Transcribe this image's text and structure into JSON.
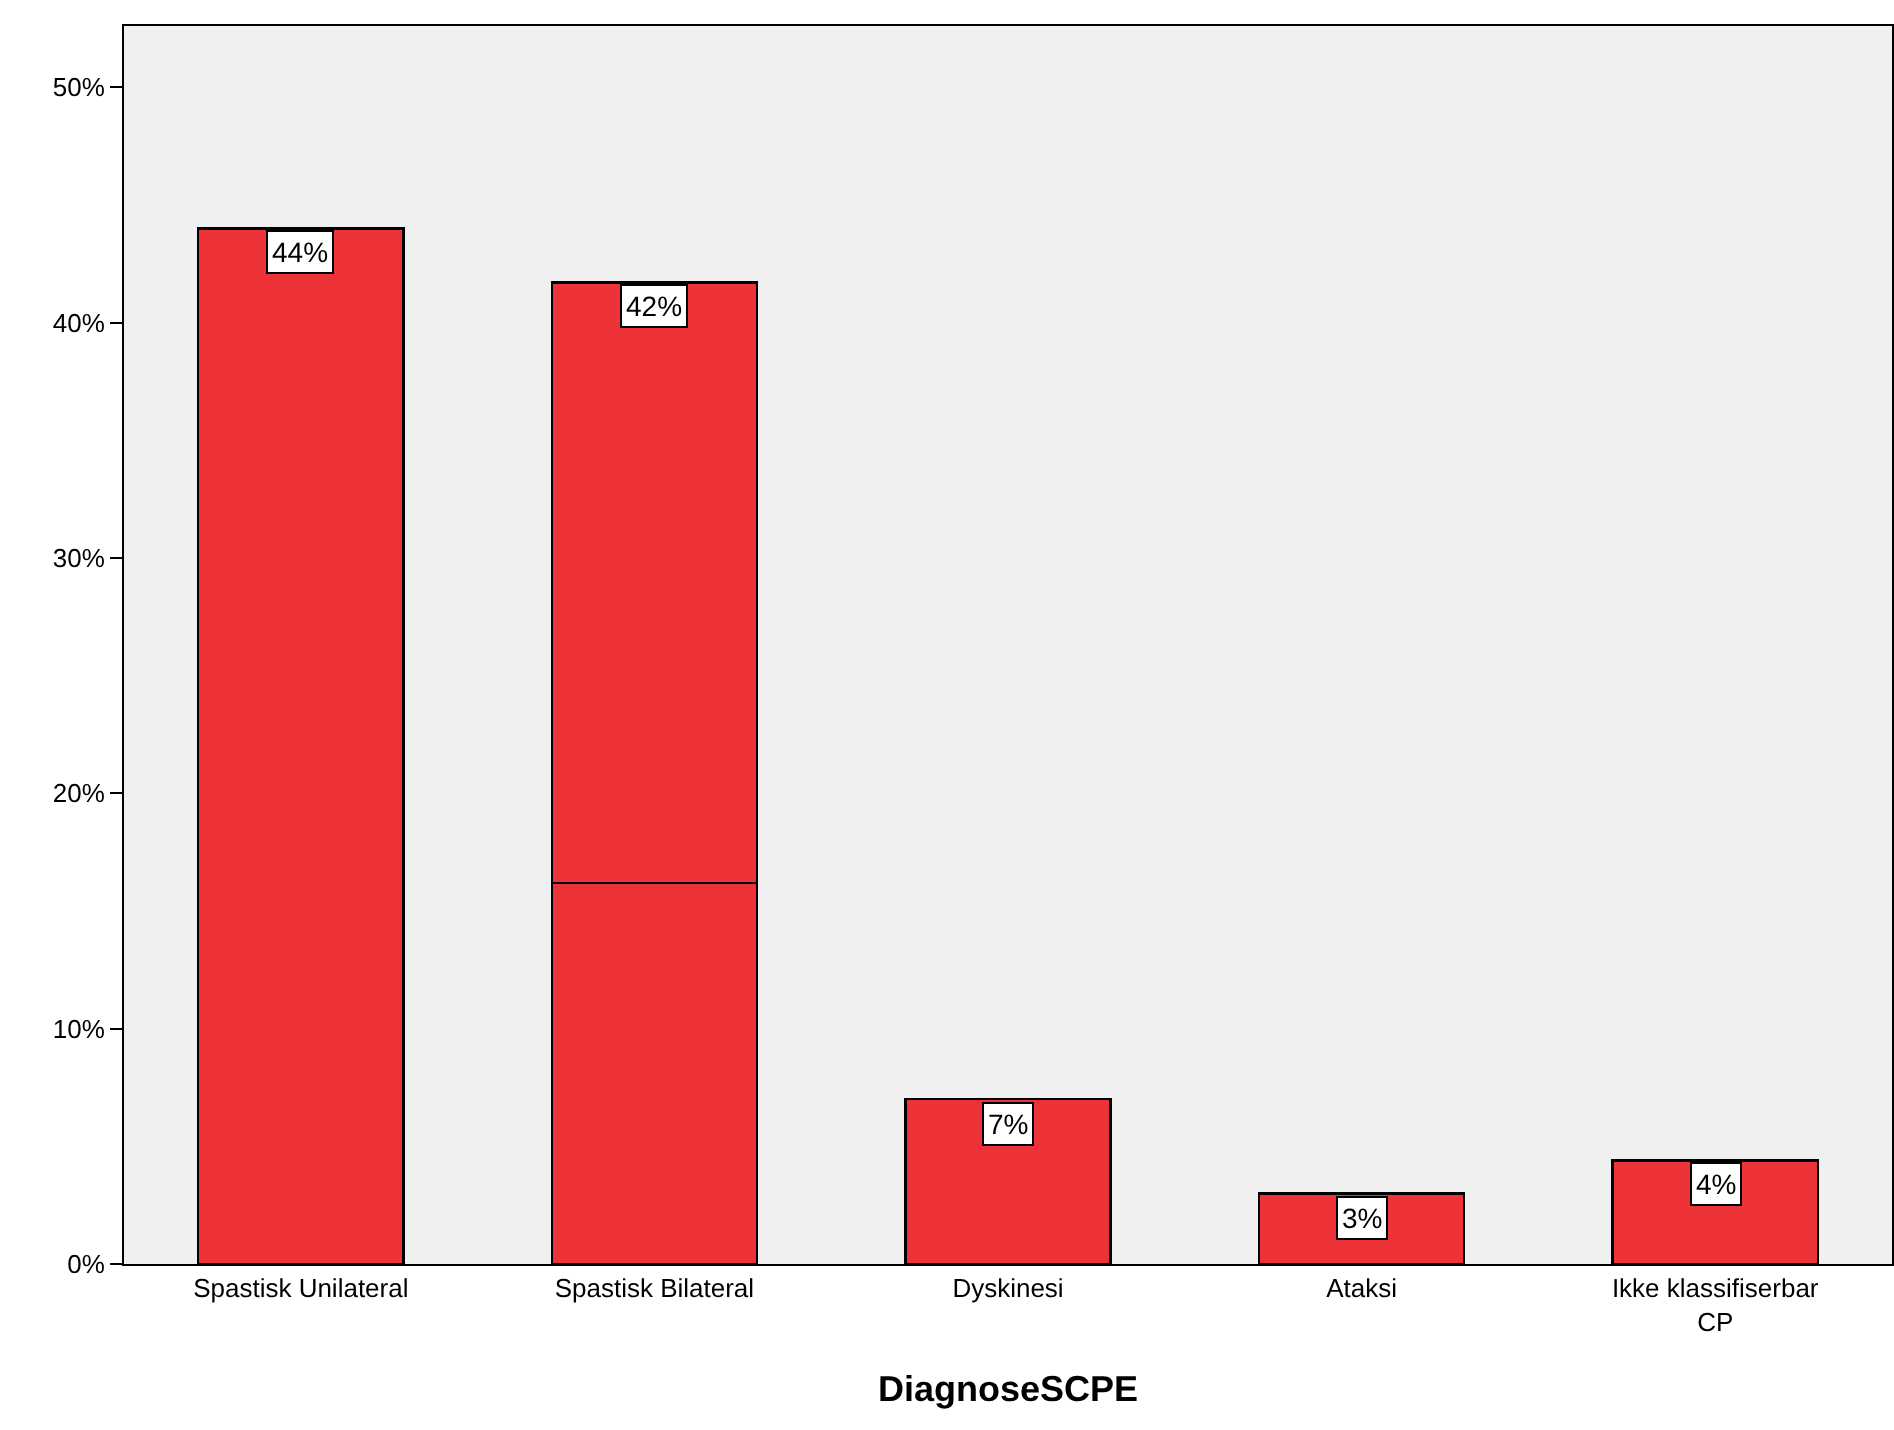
{
  "chart_data": {
    "type": "bar",
    "xlabel": "DiagnoseSCPE",
    "categories": [
      "Spastisk Unilateral",
      "Spastisk Bilateral",
      "Dyskinesi",
      "Ataksi",
      "Ikke klassifiserbar\nCP"
    ],
    "stacked": true,
    "series": [
      {
        "color": "#ee3338",
        "values": [
          44.0,
          16.2,
          7.0,
          3.0,
          4.4
        ]
      },
      {
        "color": "#ee3338",
        "values": [
          null,
          25.5,
          null,
          null,
          null
        ]
      }
    ],
    "totals": [
      "44%",
      "42%",
      "7%",
      "3%",
      "4%"
    ],
    "ylim": [
      0,
      52.6
    ],
    "yticks": [
      {
        "value": 0,
        "label": "0%"
      },
      {
        "value": 10,
        "label": "10%"
      },
      {
        "value": 20,
        "label": "20%"
      },
      {
        "value": 30,
        "label": "30%"
      },
      {
        "value": 40,
        "label": "40%"
      },
      {
        "value": 50,
        "label": "50%"
      }
    ],
    "grid": false
  }
}
